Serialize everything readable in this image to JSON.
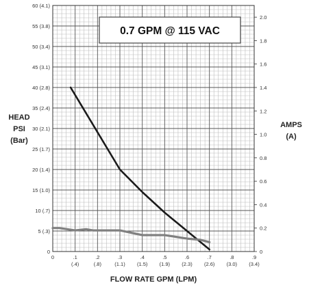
{
  "chart_data": {
    "type": "line",
    "title": "0.7 GPM @ 115 VAC",
    "xlabel": "FLOW RATE GPM (LPM)",
    "ylabel": [
      "HEAD",
      "PSI",
      "(Bar)"
    ],
    "y2label": [
      "AMPS",
      "(A)"
    ],
    "xlim": [
      0,
      0.9
    ],
    "ylim": [
      0,
      60
    ],
    "y2lim": [
      0,
      2.1
    ],
    "grid": true,
    "x_ticks": [
      {
        "top": "0",
        "bottom": ""
      },
      {
        "top": ".1",
        "bottom": "(.4)"
      },
      {
        "top": ".2",
        "bottom": "(.8)"
      },
      {
        "top": ".3",
        "bottom": "(1.1)"
      },
      {
        "top": ".4",
        "bottom": "(1.5)"
      },
      {
        "top": ".5",
        "bottom": "(1.9)"
      },
      {
        "top": ".6",
        "bottom": "(2.3)"
      },
      {
        "top": ".7",
        "bottom": "(2.6)"
      },
      {
        "top": ".8",
        "bottom": "(3.0)"
      },
      {
        "top": ".9",
        "bottom": "(3.4)"
      }
    ],
    "y_ticks": [
      "0",
      "5 (.3)",
      "10 (.7)",
      "15 (1.0)",
      "20 (1.4)",
      "25 (1.7)",
      "30 (2.1)",
      "35 (2.4)",
      "40 (2.8)",
      "45 (3.1)",
      "50 (3.4)",
      "55 (3.8)",
      "60 (4.1)"
    ],
    "y2_ticks": [
      "0",
      "0.2",
      "0.4",
      "0.6",
      "0.8",
      "1.0",
      "1.2",
      "1.4",
      "1.6",
      "1.8",
      "2.0"
    ],
    "series": [
      {
        "axis": "left",
        "color": "#1a1a1a",
        "x": [
          0.08,
          0.3,
          0.4,
          0.5,
          0.6,
          0.7
        ],
        "y": [
          40,
          20,
          14.5,
          9.5,
          5,
          0.5
        ]
      },
      {
        "axis": "right",
        "color": "#808080",
        "x": [
          0.0,
          0.03,
          0.1,
          0.15,
          0.18,
          0.22,
          0.3,
          0.4,
          0.5,
          0.6,
          0.66,
          0.7
        ],
        "y": [
          0.2,
          0.2,
          0.18,
          0.19,
          0.18,
          0.18,
          0.18,
          0.14,
          0.14,
          0.11,
          0.1,
          0.08
        ]
      }
    ]
  }
}
